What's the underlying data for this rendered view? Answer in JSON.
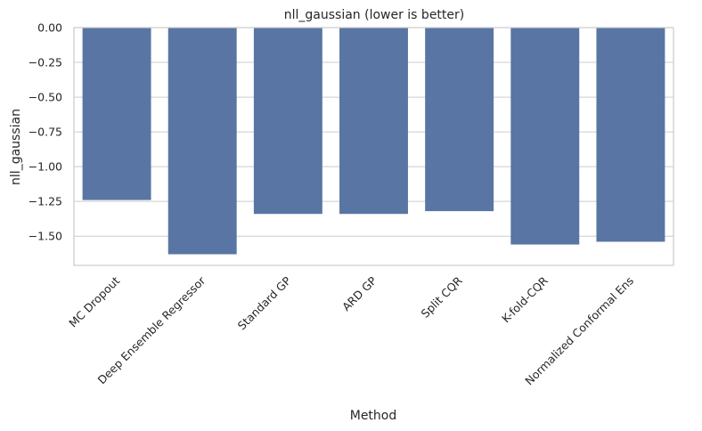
{
  "chart_data": {
    "type": "bar",
    "title": "nll_gaussian (lower is better)",
    "xlabel": "Method",
    "ylabel": "nll_gaussian",
    "categories": [
      "MC Dropout",
      "Deep Ensemble Regressor",
      "Standard GP",
      "ARD GP",
      "Split CQR",
      "K-fold-CQR",
      "Normalized Conformal Ens"
    ],
    "values": [
      -1.24,
      -1.63,
      -1.34,
      -1.34,
      -1.32,
      -1.56,
      -1.54
    ],
    "yticks": [
      0.0,
      -0.25,
      -0.5,
      -0.75,
      -1.0,
      -1.25,
      -1.5
    ],
    "ytick_labels": [
      "0.00",
      "−0.25",
      "−0.50",
      "−0.75",
      "−1.00",
      "−1.25",
      "−1.50"
    ],
    "ylim": [
      -1.71,
      0.0
    ],
    "grid": "horizontal",
    "bar_color": "#5875a4",
    "grid_color": "#cccccc",
    "frame_color": "#cccccc"
  }
}
